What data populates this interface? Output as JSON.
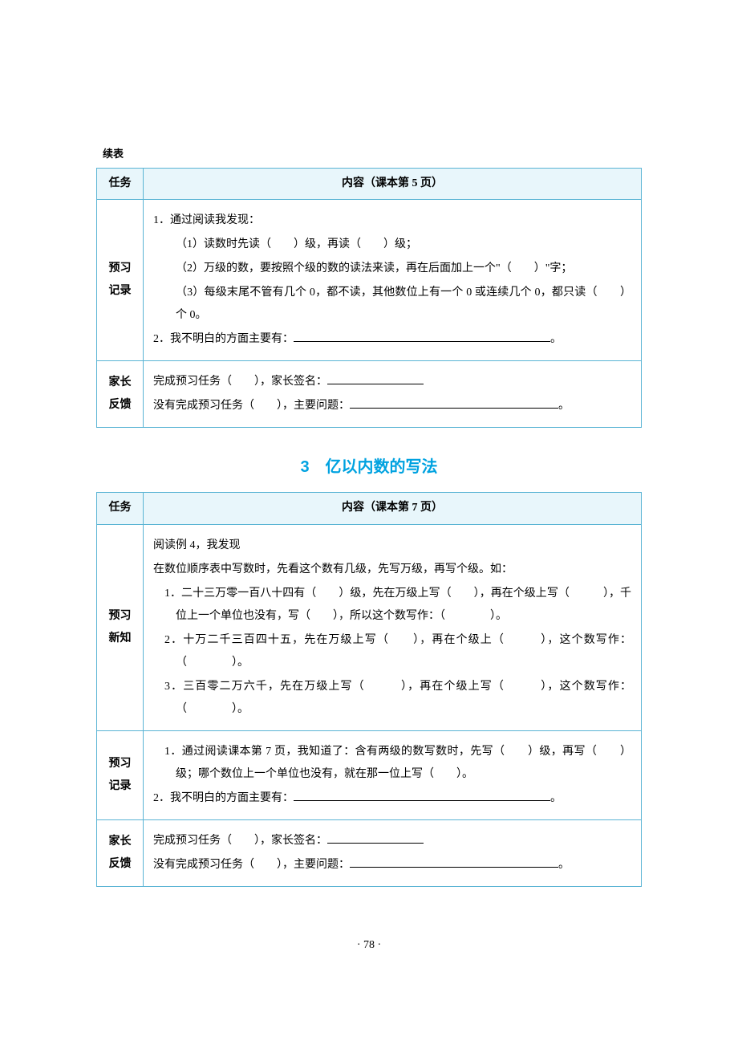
{
  "continue_label": "续表",
  "border_color": "#5ab4d4",
  "header_bg": "#e8f6fb",
  "title_color": "#00a2e0",
  "page_number": "· 78 ·",
  "table1": {
    "header_task": "任务",
    "header_content": "内容（课本第 5 页）",
    "row1": {
      "label_line1": "预习",
      "label_line2": "记录",
      "p1": "1．通过阅读我发现：",
      "p2": "（1）读数时先读（　　）级，再读（　　）级；",
      "p3": "（2）万级的数，要按照个级的数的读法来读，再在后面加上一个\"（　　）\"字；",
      "p4": "（3）每级末尾不管有几个 0，都不读，其他数位上有一个 0 或连续几个 0，都只读（　　）个 0。",
      "p5a": "2．我不明白的方面主要有：",
      "p5b": "。"
    },
    "row2": {
      "label_line1": "家长",
      "label_line2": "反馈",
      "p1a": "完成预习任务（　　），家长签名：",
      "p2a": "没有完成预习任务（　　），主要问题：",
      "p2b": "。"
    }
  },
  "section_title": "3　亿以内数的写法",
  "table2": {
    "header_task": "任务",
    "header_content": "内容（课本第 7 页）",
    "row1": {
      "label_line1": "预习",
      "label_line2": "新知",
      "p1": "阅读例 4，我发现",
      "p2": "在数位顺序表中写数时，先看这个数有几级，先写万级，再写个级。如：",
      "p3": "1．二十三万零一百八十四有（　　）级，先在万级上写（　　），再在个级上写（　　　），千位上一个单位也没有，写（　　），所以这个数写作：（　　　　）。",
      "p4": "2．十万二千三百四十五，先在万级上写（　　），再在个级上（　　　），这个数写作：（　　　　）。",
      "p5": "3．三百零二万六千，先在万级上写（　　　），再在个级上写（　　　），这个数写作：（　　　　）。"
    },
    "row2": {
      "label_line1": "预习",
      "label_line2": "记录",
      "p1": "1．通过阅读课本第 7 页，我知道了：含有两级的数写数时，先写（　　）级，再写（　　）级；哪个数位上一个单位也没有，就在那一位上写（　　）。",
      "p2a": "2．我不明白的方面主要有：",
      "p2b": "。"
    },
    "row3": {
      "label_line1": "家长",
      "label_line2": "反馈",
      "p1a": "完成预习任务（　　），家长签名：",
      "p2a": "没有完成预习任务（　　），主要问题：",
      "p2b": "。"
    }
  }
}
